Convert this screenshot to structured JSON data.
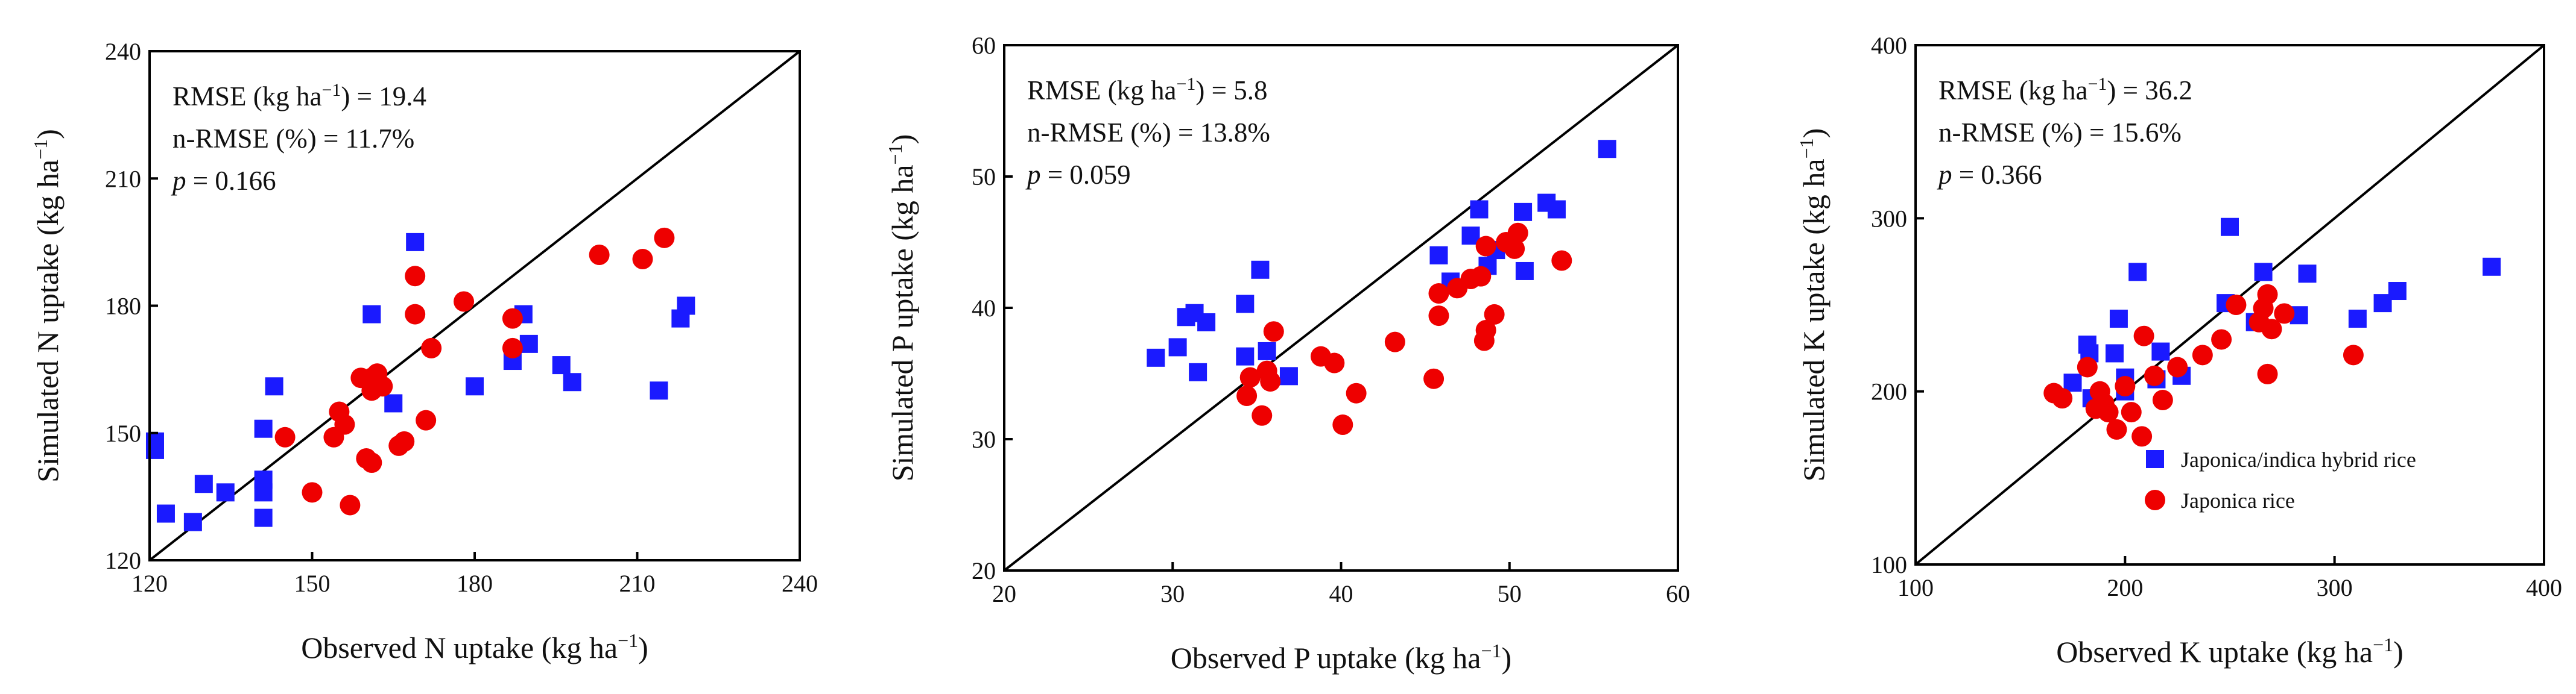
{
  "chart_data": [
    {
      "type": "scatter",
      "panel": "N",
      "xlabel": "Observed N uptake (kg ha",
      "ylabel": "Simulated N uptake (kg ha",
      "unit_sup": "−1",
      "unit_close": ")",
      "xlim": [
        120,
        240
      ],
      "ylim": [
        120,
        240
      ],
      "xticks": [
        120,
        150,
        180,
        210,
        240
      ],
      "yticks": [
        120,
        150,
        180,
        210,
        240
      ],
      "reference_line": "1:1",
      "stats": {
        "rmse_label": "RMSE (kg ha",
        "rmse_sup": "−1",
        "rmse_value": ") = 19.4",
        "nrmse": "n-RMSE (%) = 11.7%",
        "p_symbol": "p",
        "p_value": " = 0.166"
      },
      "series": [
        {
          "name": "Japonica/indica hybrid rice",
          "marker": "square",
          "color": "#1a1aff",
          "points": [
            [
              121,
              148
            ],
            [
              121,
              146
            ],
            [
              123,
              131
            ],
            [
              128,
              129
            ],
            [
              130,
              138
            ],
            [
              134,
              136
            ],
            [
              141,
              151
            ],
            [
              141,
              139
            ],
            [
              141,
              136
            ],
            [
              141,
              130
            ],
            [
              143,
              161
            ],
            [
              161,
              178
            ],
            [
              165,
              157
            ],
            [
              169,
              195
            ],
            [
              180,
              161
            ],
            [
              187,
              167
            ],
            [
              189,
              178
            ],
            [
              190,
              171
            ],
            [
              196,
              166
            ],
            [
              198,
              162
            ],
            [
              214,
              160
            ],
            [
              218,
              177
            ],
            [
              219,
              180
            ]
          ]
        },
        {
          "name": "Japonica rice",
          "marker": "circle",
          "color": "#ee0000",
          "points": [
            [
              145,
              149
            ],
            [
              150,
              136
            ],
            [
              154,
              149
            ],
            [
              155,
              155
            ],
            [
              156,
              152
            ],
            [
              157,
              133
            ],
            [
              159,
              163
            ],
            [
              160,
              144
            ],
            [
              161,
              143
            ],
            [
              161,
              163
            ],
            [
              161,
              160
            ],
            [
              162,
              164
            ],
            [
              163,
              161
            ],
            [
              166,
              147
            ],
            [
              167,
              148
            ],
            [
              169,
              178
            ],
            [
              169,
              187
            ],
            [
              171,
              153
            ],
            [
              172,
              170
            ],
            [
              178,
              181
            ],
            [
              187,
              170
            ],
            [
              187,
              177
            ],
            [
              203,
              192
            ],
            [
              211,
              191
            ],
            [
              215,
              196
            ]
          ]
        }
      ]
    },
    {
      "type": "scatter",
      "panel": "P",
      "xlabel": "Observed P uptake (kg ha",
      "ylabel": "Simulated P uptake (kg ha",
      "unit_sup": "−1",
      "unit_close": ")",
      "xlim": [
        20,
        60
      ],
      "ylim": [
        20,
        60
      ],
      "xticks": [
        20,
        30,
        40,
        50,
        60
      ],
      "yticks": [
        20,
        30,
        40,
        50,
        60
      ],
      "reference_line": "1:1",
      "stats": {
        "rmse_label": "RMSE (kg ha",
        "rmse_sup": "−1",
        "rmse_value": ") = 5.8",
        "nrmse": "n-RMSE (%) = 13.8%",
        "p_symbol": "p",
        "p_value": " = 0.059"
      },
      "series": [
        {
          "name": "Japonica/indica hybrid rice",
          "marker": "square",
          "color": "#1a1aff",
          "points": [
            [
              29.0,
              36.2
            ],
            [
              30.3,
              37.0
            ],
            [
              30.8,
              39.3
            ],
            [
              31.3,
              39.6
            ],
            [
              31.5,
              35.1
            ],
            [
              32.0,
              38.9
            ],
            [
              34.3,
              40.3
            ],
            [
              34.3,
              36.3
            ],
            [
              35.2,
              42.9
            ],
            [
              35.6,
              36.7
            ],
            [
              36.9,
              34.8
            ],
            [
              45.8,
              44.0
            ],
            [
              46.5,
              42.0
            ],
            [
              47.7,
              45.5
            ],
            [
              48.2,
              47.5
            ],
            [
              48.7,
              43.2
            ],
            [
              49.2,
              44.4
            ],
            [
              50.8,
              47.3
            ],
            [
              50.9,
              42.8
            ],
            [
              52.2,
              48.0
            ],
            [
              52.8,
              47.5
            ],
            [
              55.8,
              52.1
            ]
          ]
        },
        {
          "name": "Japonica rice",
          "marker": "circle",
          "color": "#ee0000",
          "points": [
            [
              34.4,
              33.3
            ],
            [
              34.6,
              34.7
            ],
            [
              35.3,
              31.8
            ],
            [
              35.6,
              35.2
            ],
            [
              35.8,
              34.4
            ],
            [
              36.0,
              38.2
            ],
            [
              38.8,
              36.3
            ],
            [
              39.6,
              35.8
            ],
            [
              40.1,
              31.1
            ],
            [
              40.9,
              33.5
            ],
            [
              43.2,
              37.4
            ],
            [
              45.5,
              34.6
            ],
            [
              45.8,
              39.4
            ],
            [
              45.8,
              41.1
            ],
            [
              46.9,
              41.5
            ],
            [
              47.7,
              42.2
            ],
            [
              48.3,
              42.4
            ],
            [
              48.5,
              37.5
            ],
            [
              48.6,
              38.3
            ],
            [
              48.6,
              44.7
            ],
            [
              49.1,
              39.5
            ],
            [
              49.8,
              45.0
            ],
            [
              50.3,
              44.5
            ],
            [
              50.5,
              45.7
            ],
            [
              53.1,
              43.6
            ]
          ]
        }
      ]
    },
    {
      "type": "scatter",
      "panel": "K",
      "xlabel": "Observed K uptake (kg ha",
      "ylabel": "Simulated K uptake (kg ha",
      "unit_sup": "−1",
      "unit_close": ")",
      "xlim": [
        100,
        400
      ],
      "ylim": [
        100,
        400
      ],
      "xticks": [
        100,
        200,
        300,
        400
      ],
      "yticks": [
        100,
        200,
        300,
        400
      ],
      "reference_line": "1:1",
      "legend_position": "bottom-right",
      "stats": {
        "rmse_label": "RMSE (kg ha",
        "rmse_sup": "−1",
        "rmse_value": ") = 36.2",
        "nrmse": "n-RMSE (%) = 15.6%",
        "p_symbol": "p",
        "p_value": " = 0.366"
      },
      "series": [
        {
          "name": "Japonica/indica hybrid rice",
          "marker": "square",
          "color": "#1a1aff",
          "points": [
            [
              175,
              205
            ],
            [
              182,
              227
            ],
            [
              183,
              222
            ],
            [
              184,
              196
            ],
            [
              187,
              196
            ],
            [
              195,
              222
            ],
            [
              197,
              242
            ],
            [
              200,
              208
            ],
            [
              200,
              200
            ],
            [
              206,
              269
            ],
            [
              215,
              207
            ],
            [
              217,
              223
            ],
            [
              227,
              209
            ],
            [
              248,
              251
            ],
            [
              250,
              295
            ],
            [
              262,
              240
            ],
            [
              266,
              269
            ],
            [
              283,
              244
            ],
            [
              287,
              268
            ],
            [
              311,
              242
            ],
            [
              323,
              251
            ],
            [
              330,
              258
            ],
            [
              375,
              272
            ]
          ]
        },
        {
          "name": "Japonica rice",
          "marker": "circle",
          "color": "#ee0000",
          "points": [
            [
              166,
              199
            ],
            [
              170,
              196
            ],
            [
              182,
              214
            ],
            [
              186,
              190
            ],
            [
              188,
              200
            ],
            [
              190,
              193
            ],
            [
              192,
              188
            ],
            [
              196,
              178
            ],
            [
              200,
              203
            ],
            [
              203,
              188
            ],
            [
              208,
              174
            ],
            [
              209,
              232
            ],
            [
              214,
              209
            ],
            [
              218,
              195
            ],
            [
              225,
              214
            ],
            [
              237,
              221
            ],
            [
              246,
              230
            ],
            [
              253,
              250
            ],
            [
              264,
              240
            ],
            [
              266,
              248
            ],
            [
              268,
              256
            ],
            [
              268,
              210
            ],
            [
              270,
              236
            ],
            [
              276,
              245
            ],
            [
              309,
              221
            ]
          ]
        }
      ]
    }
  ]
}
